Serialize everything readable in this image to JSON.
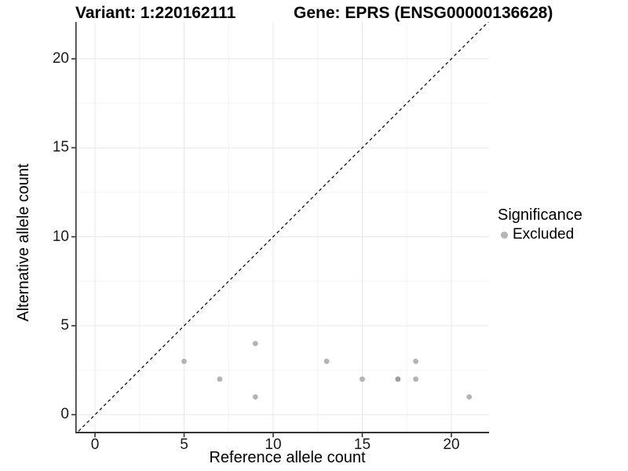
{
  "chart_data": {
    "type": "scatter",
    "title_left": "Variant: 1:220162111",
    "title_right": "Gene: EPRS (ENSG00000136628)",
    "xlabel": "Reference allele count",
    "ylabel": "Alternative allele count",
    "xlim": [
      -1.1,
      22.1
    ],
    "ylim": [
      -1.05,
      22.1
    ],
    "x_ticks": [
      0,
      5,
      10,
      15,
      20
    ],
    "y_ticks": [
      0,
      5,
      10,
      15,
      20
    ],
    "minor_ticks": [
      2.5,
      7.5,
      12.5,
      17.5
    ],
    "grid": true,
    "identity_line": {
      "style": "dashed",
      "equation": "y = x",
      "color": "#141414"
    },
    "legend": {
      "title": "Significance",
      "position": "right",
      "items": [
        {
          "label": "Excluded",
          "color": "#b4b4b4"
        }
      ]
    },
    "series": [
      {
        "name": "Excluded",
        "color": "#b4b4b4",
        "points": [
          {
            "x": 5,
            "y": 3
          },
          {
            "x": 7,
            "y": 2
          },
          {
            "x": 9,
            "y": 4
          },
          {
            "x": 9,
            "y": 1
          },
          {
            "x": 13,
            "y": 3
          },
          {
            "x": 15,
            "y": 2
          },
          {
            "x": 17,
            "y": 2,
            "color": "#9d9d9d"
          },
          {
            "x": 18,
            "y": 2
          },
          {
            "x": 18,
            "y": 3
          },
          {
            "x": 21,
            "y": 1
          }
        ]
      }
    ]
  },
  "colors": {
    "grid_major": "#e8e8e8",
    "grid_minor": "#f4f4f4",
    "axis_line": "#333333",
    "tick_mark": "#333333",
    "point_default": "#b4b4b4"
  }
}
